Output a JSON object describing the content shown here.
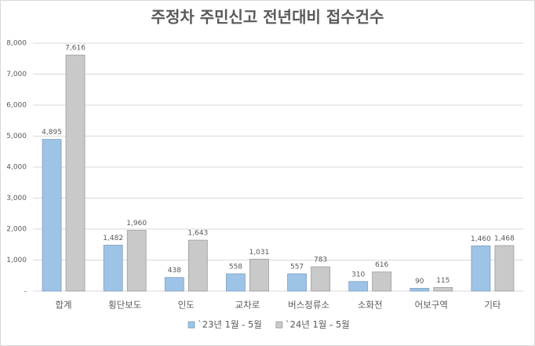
{
  "chart_data": {
    "type": "bar",
    "title": "주정차 주민신고 전년대비 접수건수",
    "categories": [
      "합계",
      "횡단보도",
      "인도",
      "교차로",
      "버스정류소",
      "소화전",
      "어보구역",
      "기타"
    ],
    "series": [
      {
        "name": "`23년 1월 - 5월",
        "color": "#9dc3e6",
        "values": [
          4895,
          1482,
          438,
          558,
          557,
          310,
          90,
          1460
        ],
        "value_labels": [
          "4,895",
          "1,482",
          "438",
          "558",
          "557",
          "310",
          "90",
          "1,460"
        ]
      },
      {
        "name": "`24년 1월 - 5월",
        "color": "#c9c9c9",
        "values": [
          7616,
          1960,
          1643,
          1031,
          783,
          616,
          115,
          1468
        ],
        "value_labels": [
          "7,616",
          "1,960",
          "1,643",
          "1,031",
          "783",
          "616",
          "115",
          "1,468"
        ]
      }
    ],
    "ylim": [
      0,
      8000
    ],
    "yticks": [
      {
        "value": 0,
        "label": "-"
      },
      {
        "value": 1000,
        "label": "1,000"
      },
      {
        "value": 2000,
        "label": "2,000"
      },
      {
        "value": 3000,
        "label": "3,000"
      },
      {
        "value": 4000,
        "label": "4,000"
      },
      {
        "value": 5000,
        "label": "5,000"
      },
      {
        "value": 6000,
        "label": "6,000"
      },
      {
        "value": 7000,
        "label": "7,000"
      },
      {
        "value": 8000,
        "label": "8,000"
      }
    ],
    "grid": true,
    "legend": "bottom"
  }
}
